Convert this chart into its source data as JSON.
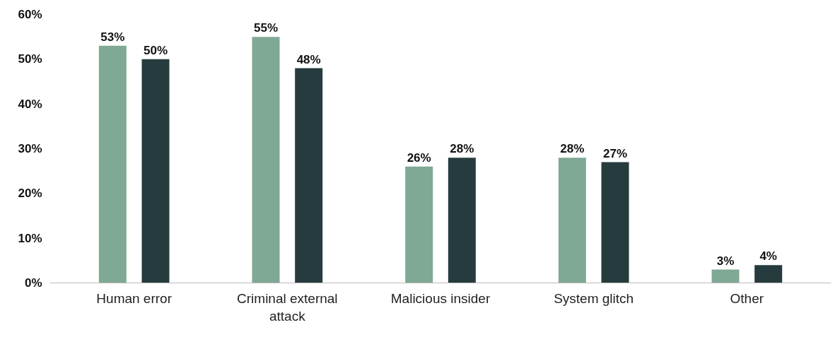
{
  "chart_data": {
    "type": "bar",
    "categories": [
      "Human error",
      "Criminal external attack",
      "Malicious insider",
      "System glitch",
      "Other"
    ],
    "series": [
      {
        "color": "#7fa994",
        "values": [
          53,
          55,
          26,
          28,
          3
        ],
        "value_labels": [
          "53%",
          "55%",
          "26%",
          "28%",
          "3%"
        ]
      },
      {
        "color": "#263b3e",
        "values": [
          50,
          48,
          28,
          27,
          4
        ],
        "value_labels": [
          "50%",
          "48%",
          "28%",
          "27%",
          "4%"
        ]
      }
    ],
    "ylim": [
      0,
      60
    ],
    "yticks": [
      {
        "value": 0,
        "label": "0%"
      },
      {
        "value": 10,
        "label": "10%"
      },
      {
        "value": 20,
        "label": "20%"
      },
      {
        "value": 30,
        "label": "30%"
      },
      {
        "value": 40,
        "label": "40%"
      },
      {
        "value": 50,
        "label": "50%"
      },
      {
        "value": 60,
        "label": "60%"
      }
    ],
    "grid": false
  }
}
